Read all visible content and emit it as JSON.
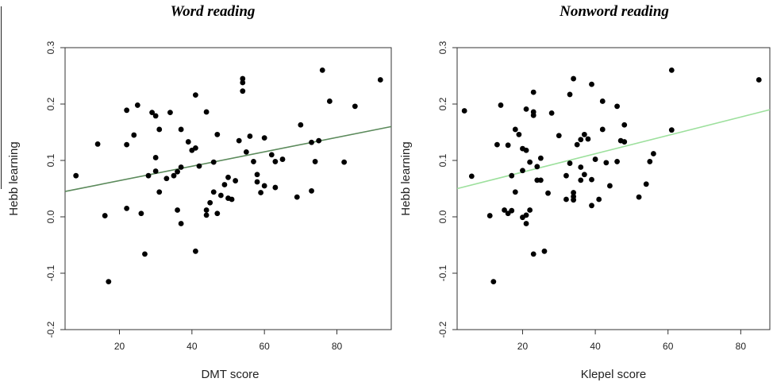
{
  "chart_data": [
    {
      "type": "scatter",
      "title": "Word reading",
      "xlabel": "DMT score",
      "ylabel": "Hebb learning",
      "xlim": [
        5,
        95
      ],
      "ylim": [
        -0.2,
        0.3
      ],
      "xticks": [
        "20",
        "40",
        "60",
        "80"
      ],
      "yticks": [
        "-0.2",
        "-0.1",
        "0.0",
        "0.1",
        "0.2",
        "0.3"
      ],
      "fit_line": {
        "x": [
          5,
          95
        ],
        "y": [
          0.045,
          0.16
        ],
        "color": "#5b8a5b"
      },
      "points": [
        [
          8,
          0.073
        ],
        [
          14,
          0.129
        ],
        [
          16,
          0.002
        ],
        [
          17,
          -0.115
        ],
        [
          22,
          0.128
        ],
        [
          22,
          0.015
        ],
        [
          22,
          0.189
        ],
        [
          24,
          0.145
        ],
        [
          25,
          0.198
        ],
        [
          26,
          0.006
        ],
        [
          27,
          -0.066
        ],
        [
          28,
          0.073
        ],
        [
          29,
          0.185
        ],
        [
          30,
          0.179
        ],
        [
          30,
          0.105
        ],
        [
          30,
          0.081
        ],
        [
          31,
          0.155
        ],
        [
          31,
          0.044
        ],
        [
          33,
          0.068
        ],
        [
          34,
          0.185
        ],
        [
          35,
          0.073
        ],
        [
          36,
          0.012
        ],
        [
          36,
          0.08
        ],
        [
          37,
          -0.012
        ],
        [
          37,
          0.088
        ],
        [
          37,
          0.155
        ],
        [
          39,
          0.133
        ],
        [
          40,
          0.118
        ],
        [
          41,
          0.122
        ],
        [
          41,
          0.216
        ],
        [
          41,
          -0.061
        ],
        [
          42,
          0.09
        ],
        [
          44,
          0.186
        ],
        [
          44,
          0.012
        ],
        [
          44,
          0.003
        ],
        [
          45,
          0.025
        ],
        [
          46,
          0.044
        ],
        [
          46,
          0.097
        ],
        [
          47,
          0.006
        ],
        [
          47,
          0.146
        ],
        [
          48,
          0.038
        ],
        [
          49,
          0.057
        ],
        [
          50,
          0.07
        ],
        [
          50,
          0.033
        ],
        [
          51,
          0.031
        ],
        [
          52,
          0.064
        ],
        [
          53,
          0.135
        ],
        [
          54,
          0.245
        ],
        [
          54,
          0.238
        ],
        [
          54,
          0.223
        ],
        [
          55,
          0.115
        ],
        [
          56,
          0.143
        ],
        [
          57,
          0.098
        ],
        [
          58,
          0.075
        ],
        [
          58,
          0.062
        ],
        [
          59,
          0.043
        ],
        [
          60,
          0.055
        ],
        [
          60,
          0.14
        ],
        [
          62,
          0.11
        ],
        [
          63,
          0.052
        ],
        [
          63,
          0.098
        ],
        [
          65,
          0.102
        ],
        [
          69,
          0.035
        ],
        [
          70,
          0.163
        ],
        [
          73,
          0.132
        ],
        [
          73,
          0.046
        ],
        [
          74,
          0.098
        ],
        [
          75,
          0.135
        ],
        [
          76,
          0.26
        ],
        [
          78,
          0.205
        ],
        [
          82,
          0.097
        ],
        [
          85,
          0.196
        ],
        [
          92,
          0.243
        ]
      ]
    },
    {
      "type": "scatter",
      "title": "Nonword reading",
      "xlabel": "Klepel score",
      "ylabel": "Hebb learning",
      "xlim": [
        2,
        88
      ],
      "ylim": [
        -0.2,
        0.3
      ],
      "xticks": [
        "20",
        "40",
        "60",
        "80"
      ],
      "yticks": [
        "-0.2",
        "-0.1",
        "0.0",
        "0.1",
        "0.2",
        "0.3"
      ],
      "fit_line": {
        "x": [
          2,
          88
        ],
        "y": [
          0.05,
          0.19
        ],
        "color": "#9de09d"
      },
      "points": [
        [
          4,
          0.188
        ],
        [
          6,
          0.072
        ],
        [
          11,
          0.002
        ],
        [
          12,
          -0.115
        ],
        [
          13,
          0.128
        ],
        [
          14,
          0.198
        ],
        [
          15,
          0.012
        ],
        [
          16,
          0.127
        ],
        [
          16,
          0.006
        ],
        [
          17,
          0.011
        ],
        [
          17,
          0.073
        ],
        [
          18,
          0.155
        ],
        [
          18,
          0.044
        ],
        [
          19,
          0.146
        ],
        [
          20,
          0.082
        ],
        [
          20,
          0.121
        ],
        [
          20,
          -0.001
        ],
        [
          21,
          0.191
        ],
        [
          21,
          0.003
        ],
        [
          21,
          -0.012
        ],
        [
          21,
          0.118
        ],
        [
          22,
          0.097
        ],
        [
          22,
          0.012
        ],
        [
          23,
          0.221
        ],
        [
          23,
          0.186
        ],
        [
          23,
          0.18
        ],
        [
          23,
          -0.066
        ],
        [
          24,
          0.089
        ],
        [
          24,
          0.065
        ],
        [
          25,
          0.104
        ],
        [
          25,
          0.065
        ],
        [
          26,
          -0.061
        ],
        [
          27,
          0.042
        ],
        [
          28,
          0.184
        ],
        [
          30,
          0.144
        ],
        [
          32,
          0.073
        ],
        [
          32,
          0.031
        ],
        [
          33,
          0.217
        ],
        [
          33,
          0.095
        ],
        [
          34,
          0.245
        ],
        [
          34,
          0.043
        ],
        [
          34,
          0.036
        ],
        [
          34,
          0.03
        ],
        [
          35,
          0.128
        ],
        [
          36,
          0.088
        ],
        [
          36,
          0.065
        ],
        [
          36,
          0.137
        ],
        [
          37,
          0.146
        ],
        [
          37,
          0.075
        ],
        [
          38,
          0.138
        ],
        [
          39,
          0.235
        ],
        [
          39,
          0.066
        ],
        [
          39,
          0.02
        ],
        [
          40,
          0.102
        ],
        [
          41,
          0.031
        ],
        [
          42,
          0.205
        ],
        [
          42,
          0.155
        ],
        [
          43,
          0.096
        ],
        [
          44,
          0.055
        ],
        [
          46,
          0.098
        ],
        [
          46,
          0.196
        ],
        [
          47,
          0.135
        ],
        [
          48,
          0.133
        ],
        [
          48,
          0.163
        ],
        [
          52,
          0.035
        ],
        [
          54,
          0.058
        ],
        [
          55,
          0.098
        ],
        [
          56,
          0.112
        ],
        [
          61,
          0.154
        ],
        [
          61,
          0.26
        ],
        [
          85,
          0.243
        ]
      ]
    }
  ]
}
